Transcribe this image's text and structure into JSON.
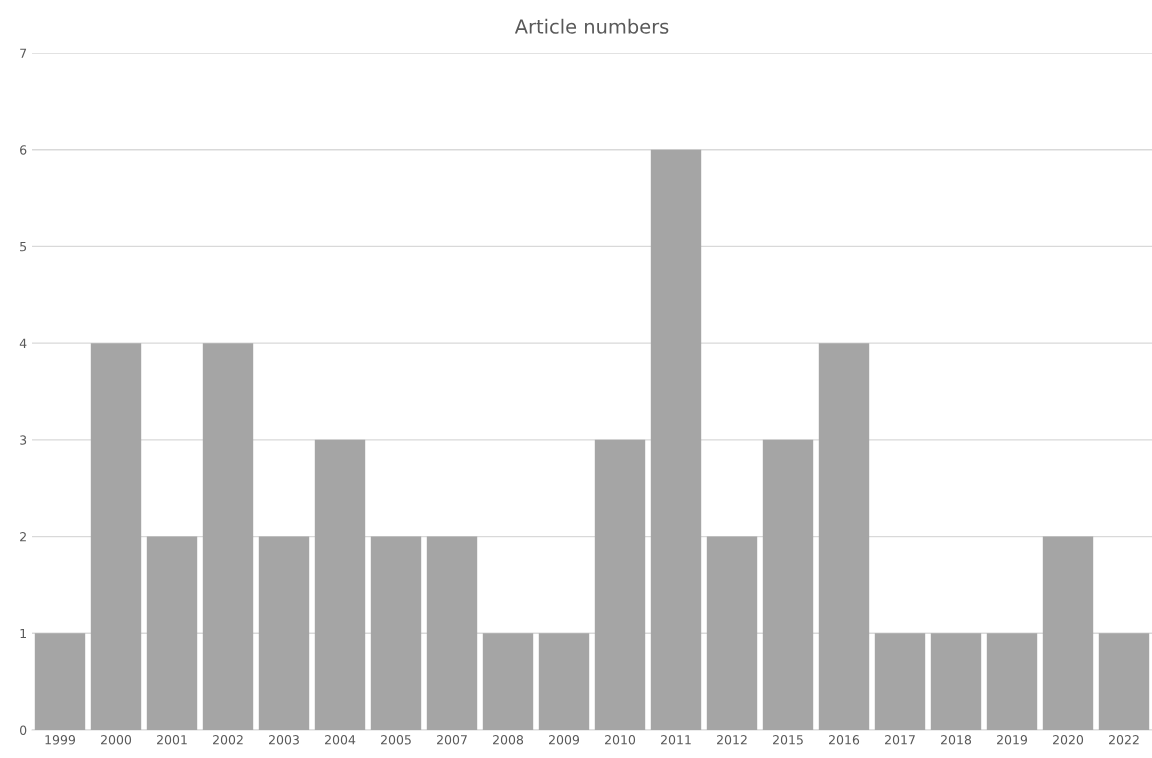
{
  "chart_data": {
    "type": "bar",
    "title": "Article numbers",
    "categories": [
      "1999",
      "2000",
      "2001",
      "2002",
      "2003",
      "2004",
      "2005",
      "2007",
      "2008",
      "2009",
      "2010",
      "2011",
      "2012",
      "2015",
      "2016",
      "2017",
      "2018",
      "2019",
      "2020",
      "2022"
    ],
    "values": [
      1,
      4,
      2,
      4,
      2,
      3,
      2,
      2,
      1,
      1,
      3,
      6,
      2,
      3,
      4,
      1,
      1,
      1,
      2,
      1
    ],
    "color": "#a5a5a5",
    "ylim": [
      0,
      7
    ],
    "yticks": [
      0,
      1,
      2,
      3,
      4,
      5,
      6,
      7
    ],
    "grid": "y"
  }
}
